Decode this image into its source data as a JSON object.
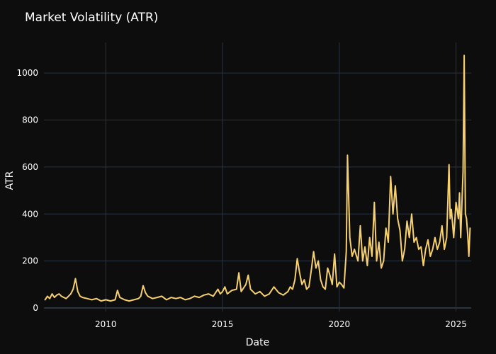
{
  "chart_data": {
    "type": "line",
    "title": "Market Volatility (ATR)",
    "xlabel": "Date",
    "ylabel": "ATR",
    "xlim": [
      2007.35,
      2025.65
    ],
    "ylim": [
      -15,
      1130
    ],
    "x_ticks": [
      {
        "value": 2010,
        "label": "2010"
      },
      {
        "value": 2015,
        "label": "2015"
      },
      {
        "value": 2020,
        "label": "2020"
      },
      {
        "value": 2025,
        "label": "2025"
      }
    ],
    "y_ticks": [
      {
        "value": 0,
        "label": "0"
      },
      {
        "value": 200,
        "label": "200"
      },
      {
        "value": 400,
        "label": "400"
      },
      {
        "value": 600,
        "label": "600"
      },
      {
        "value": 800,
        "label": "800"
      },
      {
        "value": 1000,
        "label": "1000"
      }
    ],
    "grid": true,
    "line_color": "#f6d06e",
    "background_color": "#0d0d0d",
    "grid_color": "#283442",
    "series": [
      {
        "x": [
          2007.4,
          2007.5,
          2007.6,
          2007.7,
          2007.8,
          2007.9,
          2008.0,
          2008.1,
          2008.2,
          2008.3,
          2008.4,
          2008.5,
          2008.6,
          2008.7,
          2008.8,
          2008.9,
          2009.0,
          2009.2,
          2009.4,
          2009.6,
          2009.8,
          2010.0,
          2010.2,
          2010.4,
          2010.5,
          2010.6,
          2010.8,
          2011.0,
          2011.2,
          2011.4,
          2011.5,
          2011.6,
          2011.7,
          2011.8,
          2012.0,
          2012.2,
          2012.4,
          2012.6,
          2012.8,
          2013.0,
          2013.2,
          2013.4,
          2013.6,
          2013.8,
          2014.0,
          2014.2,
          2014.4,
          2014.6,
          2014.8,
          2014.9,
          2015.0,
          2015.1,
          2015.2,
          2015.4,
          2015.6,
          2015.7,
          2015.8,
          2016.0,
          2016.1,
          2016.2,
          2016.4,
          2016.6,
          2016.8,
          2017.0,
          2017.2,
          2017.4,
          2017.6,
          2017.8,
          2017.9,
          2018.0,
          2018.1,
          2018.2,
          2018.3,
          2018.4,
          2018.5,
          2018.6,
          2018.7,
          2018.8,
          2018.9,
          2019.0,
          2019.1,
          2019.2,
          2019.3,
          2019.4,
          2019.5,
          2019.6,
          2019.7,
          2019.8,
          2019.9,
          2020.0,
          2020.1,
          2020.2,
          2020.3,
          2020.35,
          2020.45,
          2020.55,
          2020.65,
          2020.8,
          2020.9,
          2021.0,
          2021.1,
          2021.2,
          2021.3,
          2021.4,
          2021.5,
          2021.6,
          2021.7,
          2021.8,
          2021.9,
          2022.0,
          2022.1,
          2022.2,
          2022.3,
          2022.4,
          2022.5,
          2022.6,
          2022.7,
          2022.8,
          2022.9,
          2023.0,
          2023.1,
          2023.2,
          2023.3,
          2023.4,
          2023.5,
          2023.6,
          2023.7,
          2023.8,
          2023.9,
          2024.0,
          2024.1,
          2024.2,
          2024.3,
          2024.4,
          2024.5,
          2024.6,
          2024.7,
          2024.75,
          2024.8,
          2024.9,
          2025.0,
          2025.1,
          2025.15,
          2025.2,
          2025.3,
          2025.35,
          2025.4,
          2025.45,
          2025.5,
          2025.55,
          2025.6
        ],
        "values": [
          35,
          50,
          40,
          60,
          45,
          55,
          60,
          50,
          45,
          40,
          50,
          60,
          80,
          125,
          70,
          50,
          45,
          40,
          35,
          40,
          30,
          35,
          30,
          35,
          75,
          45,
          35,
          30,
          35,
          40,
          50,
          95,
          65,
          50,
          40,
          45,
          50,
          35,
          45,
          40,
          45,
          35,
          40,
          50,
          45,
          55,
          60,
          50,
          80,
          60,
          70,
          90,
          60,
          75,
          80,
          150,
          70,
          100,
          140,
          80,
          60,
          70,
          50,
          60,
          90,
          65,
          55,
          70,
          90,
          80,
          120,
          210,
          150,
          100,
          120,
          80,
          90,
          160,
          240,
          170,
          200,
          120,
          90,
          80,
          170,
          140,
          100,
          230,
          90,
          110,
          100,
          85,
          240,
          650,
          300,
          220,
          250,
          200,
          350,
          200,
          260,
          180,
          300,
          220,
          450,
          200,
          280,
          170,
          200,
          340,
          280,
          560,
          400,
          520,
          380,
          330,
          200,
          250,
          370,
          300,
          400,
          280,
          300,
          250,
          260,
          180,
          250,
          290,
          220,
          250,
          300,
          250,
          280,
          350,
          250,
          300,
          610,
          380,
          420,
          300,
          450,
          380,
          490,
          300,
          580,
          1075,
          400,
          380,
          310,
          220,
          340
        ]
      }
    ]
  }
}
